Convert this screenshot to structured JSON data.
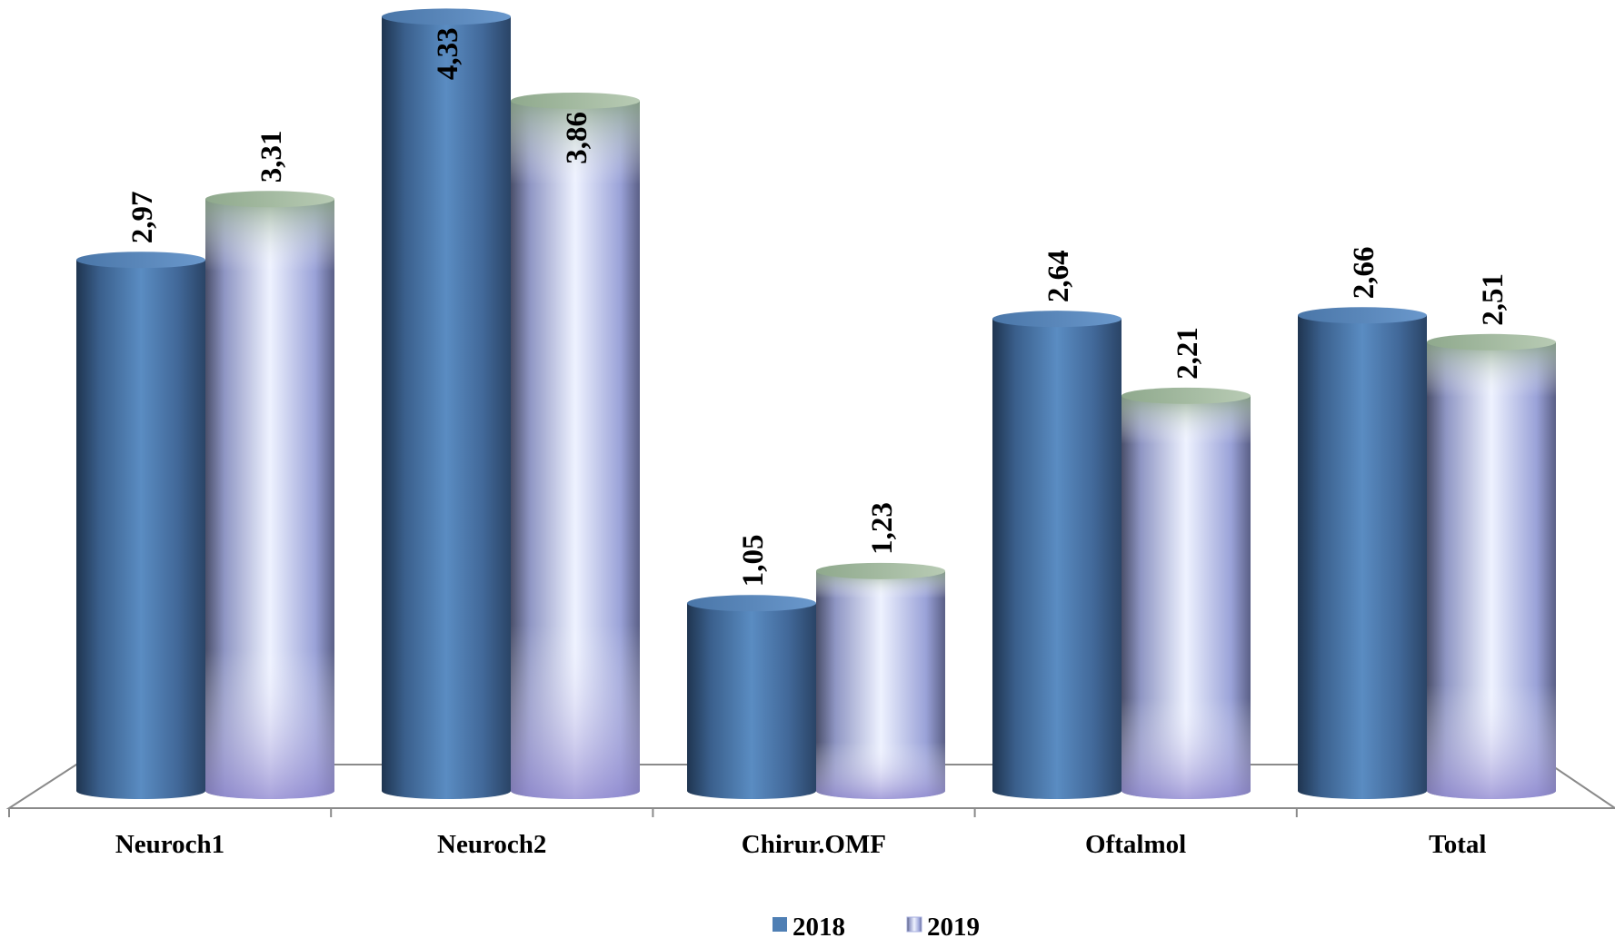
{
  "chart_data": {
    "type": "bar",
    "style": "3d-cylinder",
    "categories": [
      "Neuroch1",
      "Neuroch2",
      "Chirur.OMF",
      "Oftalmol",
      "Total"
    ],
    "series": [
      {
        "name": "2018",
        "values": [
          2.97,
          4.33,
          1.05,
          2.64,
          2.66
        ],
        "labels": [
          "2,97",
          "4,33",
          "1,05",
          "2,64",
          "2,66"
        ],
        "color": "#4f7fb4"
      },
      {
        "name": "2019",
        "values": [
          3.31,
          3.86,
          1.23,
          2.21,
          2.51
        ],
        "labels": [
          "3,31",
          "3,86",
          "1,23",
          "2,21",
          "2,51"
        ],
        "color": "#c9cff8"
      }
    ],
    "ylim": [
      0,
      4.33
    ],
    "grid": false,
    "legend": "bottom"
  }
}
